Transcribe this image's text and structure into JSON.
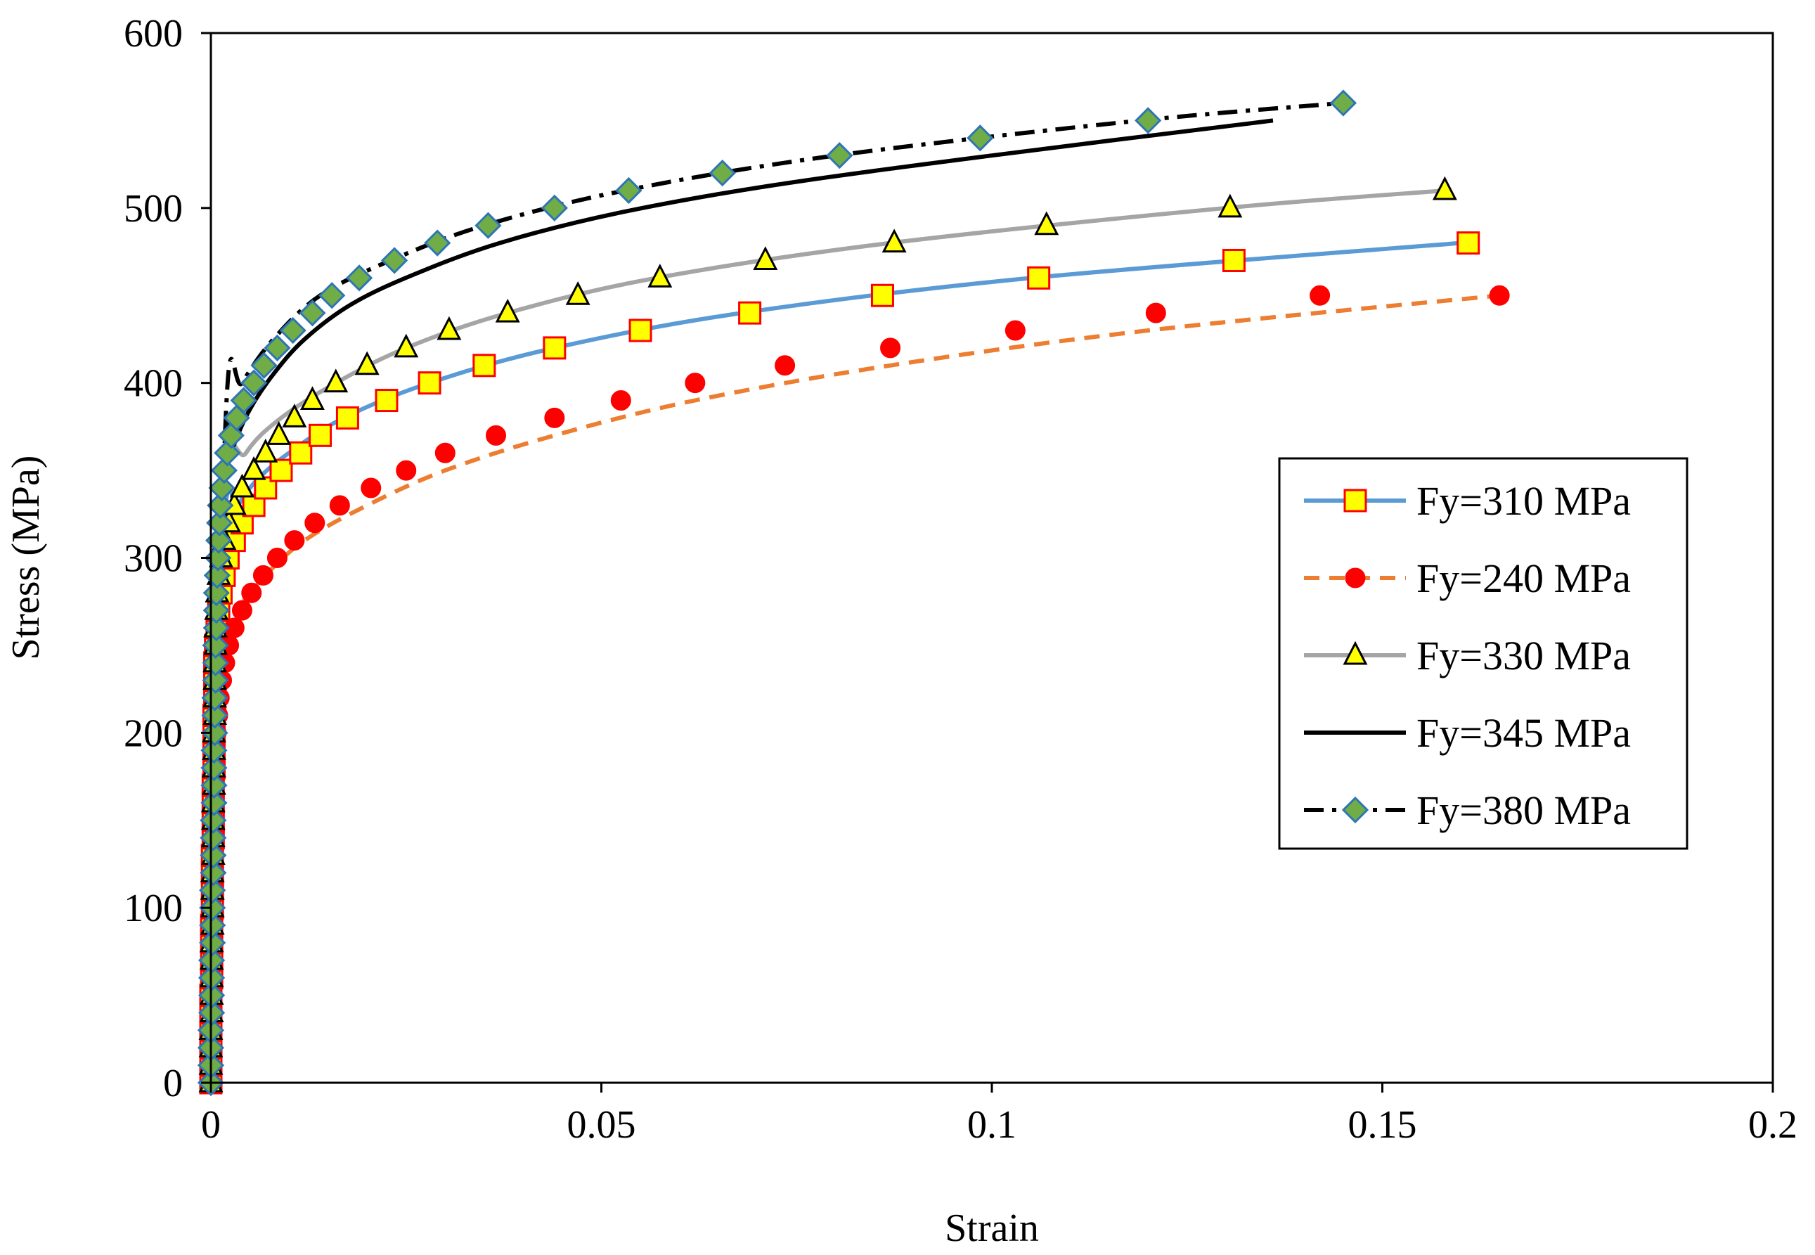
{
  "chart_data": {
    "type": "line",
    "title": "",
    "xlabel": "Strain",
    "ylabel": "Stress (MPa)",
    "xlim": [
      0,
      0.2
    ],
    "ylim": [
      0,
      600
    ],
    "xticks": [
      0,
      0.05,
      0.1,
      0.15,
      0.2
    ],
    "xtick_labels": [
      "0",
      "0.05",
      "0.1",
      "0.15",
      "0.2"
    ],
    "yticks": [
      0,
      100,
      200,
      300,
      400,
      500,
      600
    ],
    "ytick_labels": [
      "0",
      "100",
      "200",
      "300",
      "400",
      "500",
      "600"
    ],
    "grid": false,
    "legend_position": "right-center",
    "series": [
      {
        "name": "Fy=310 MPa",
        "line_color": "#5b9bd5",
        "line_style": "solid",
        "marker": "square",
        "marker_fill": "#ffff00",
        "marker_stroke": "#ff0000",
        "line_points": [
          [
            0,
            0
          ],
          [
            0.0016,
            310
          ],
          [
            0.0035,
            330
          ],
          [
            0.006,
            345
          ],
          [
            0.01,
            360
          ],
          [
            0.017,
            380
          ],
          [
            0.028,
            400
          ],
          [
            0.044,
            420
          ],
          [
            0.068,
            440
          ],
          [
            0.105,
            460
          ],
          [
            0.16,
            480
          ]
        ],
        "marker_points": [
          [
            0,
            0
          ],
          [
            0,
            10
          ],
          [
            0,
            20
          ],
          [
            0,
            30
          ],
          [
            0,
            40
          ],
          [
            0,
            50
          ],
          [
            0.0001,
            60
          ],
          [
            0.0001,
            70
          ],
          [
            0.0001,
            80
          ],
          [
            0.0001,
            90
          ],
          [
            0.0002,
            100
          ],
          [
            0.0002,
            110
          ],
          [
            0.0002,
            120
          ],
          [
            0.0002,
            130
          ],
          [
            0.0003,
            140
          ],
          [
            0.0003,
            150
          ],
          [
            0.0003,
            160
          ],
          [
            0.0003,
            170
          ],
          [
            0.0004,
            180
          ],
          [
            0.0004,
            190
          ],
          [
            0.0004,
            200
          ],
          [
            0.0004,
            210
          ],
          [
            0.0005,
            220
          ],
          [
            0.0005,
            230
          ],
          [
            0.0005,
            240
          ],
          [
            0.0006,
            250
          ],
          [
            0.0008,
            260
          ],
          [
            0.001,
            270
          ],
          [
            0.0013,
            280
          ],
          [
            0.0017,
            290
          ],
          [
            0.0022,
            300
          ],
          [
            0.003,
            310
          ],
          [
            0.004,
            320
          ],
          [
            0.0055,
            330
          ],
          [
            0.007,
            340
          ],
          [
            0.009,
            350
          ],
          [
            0.0115,
            360
          ],
          [
            0.014,
            370
          ],
          [
            0.0175,
            380
          ],
          [
            0.0225,
            390
          ],
          [
            0.028,
            400
          ],
          [
            0.035,
            410
          ],
          [
            0.044,
            420
          ],
          [
            0.055,
            430
          ],
          [
            0.069,
            440
          ],
          [
            0.086,
            450
          ],
          [
            0.106,
            460
          ],
          [
            0.131,
            470
          ],
          [
            0.161,
            480
          ]
        ]
      },
      {
        "name": "Fy=240 MPa",
        "line_color": "#ed7d31",
        "line_style": "dashed",
        "marker": "circle",
        "marker_fill": "#ff0000",
        "marker_stroke": "#ff0000",
        "line_points": [
          [
            0,
            0
          ],
          [
            0.0012,
            240
          ],
          [
            0.0035,
            270
          ],
          [
            0.007,
            290
          ],
          [
            0.012,
            310
          ],
          [
            0.02,
            330
          ],
          [
            0.03,
            350
          ],
          [
            0.044,
            370
          ],
          [
            0.062,
            390
          ],
          [
            0.087,
            410
          ],
          [
            0.12,
            430
          ],
          [
            0.165,
            450
          ]
        ],
        "marker_points": [
          [
            0,
            0
          ],
          [
            0,
            10
          ],
          [
            0,
            20
          ],
          [
            0,
            30
          ],
          [
            0.0001,
            40
          ],
          [
            0.0001,
            50
          ],
          [
            0.0001,
            60
          ],
          [
            0.0001,
            70
          ],
          [
            0.0002,
            80
          ],
          [
            0.0002,
            90
          ],
          [
            0.0002,
            100
          ],
          [
            0.0003,
            110
          ],
          [
            0.0003,
            120
          ],
          [
            0.0003,
            130
          ],
          [
            0.0004,
            140
          ],
          [
            0.0004,
            150
          ],
          [
            0.0004,
            160
          ],
          [
            0.0005,
            170
          ],
          [
            0.0005,
            180
          ],
          [
            0.0006,
            190
          ],
          [
            0.0007,
            200
          ],
          [
            0.0009,
            210
          ],
          [
            0.0011,
            220
          ],
          [
            0.0014,
            230
          ],
          [
            0.0018,
            240
          ],
          [
            0.0023,
            250
          ],
          [
            0.003,
            260
          ],
          [
            0.004,
            270
          ],
          [
            0.0052,
            280
          ],
          [
            0.0067,
            290
          ],
          [
            0.0085,
            300
          ],
          [
            0.0107,
            310
          ],
          [
            0.0133,
            320
          ],
          [
            0.0165,
            330
          ],
          [
            0.0205,
            340
          ],
          [
            0.025,
            350
          ],
          [
            0.03,
            360
          ],
          [
            0.0365,
            370
          ],
          [
            0.044,
            380
          ],
          [
            0.0525,
            390
          ],
          [
            0.062,
            400
          ],
          [
            0.0735,
            410
          ],
          [
            0.087,
            420
          ],
          [
            0.103,
            430
          ],
          [
            0.121,
            440
          ],
          [
            0.142,
            450
          ],
          [
            0.165,
            450
          ]
        ]
      },
      {
        "name": "Fy=330 MPa",
        "line_color": "#a5a5a5",
        "line_style": "solid",
        "marker": "triangle",
        "marker_fill": "#ffff00",
        "marker_stroke": "#000000",
        "line_points": [
          [
            0,
            0
          ],
          [
            0.0017,
            330
          ],
          [
            0.0045,
            360
          ],
          [
            0.009,
            380
          ],
          [
            0.016,
            400
          ],
          [
            0.025,
            420
          ],
          [
            0.038,
            440
          ],
          [
            0.057,
            460
          ],
          [
            0.087,
            480
          ],
          [
            0.13,
            500
          ],
          [
            0.158,
            510
          ]
        ],
        "marker_points": [
          [
            0,
            0
          ],
          [
            0,
            10
          ],
          [
            0,
            20
          ],
          [
            0,
            30
          ],
          [
            0.0001,
            40
          ],
          [
            0.0001,
            50
          ],
          [
            0.0001,
            60
          ],
          [
            0.0001,
            70
          ],
          [
            0.0001,
            80
          ],
          [
            0.0002,
            90
          ],
          [
            0.0002,
            100
          ],
          [
            0.0002,
            110
          ],
          [
            0.0002,
            120
          ],
          [
            0.0003,
            130
          ],
          [
            0.0003,
            140
          ],
          [
            0.0003,
            150
          ],
          [
            0.0003,
            160
          ],
          [
            0.0004,
            170
          ],
          [
            0.0004,
            180
          ],
          [
            0.0004,
            190
          ],
          [
            0.0004,
            200
          ],
          [
            0.0005,
            210
          ],
          [
            0.0005,
            220
          ],
          [
            0.0005,
            230
          ],
          [
            0.0005,
            240
          ],
          [
            0.0006,
            250
          ],
          [
            0.0006,
            260
          ],
          [
            0.0007,
            270
          ],
          [
            0.0008,
            280
          ],
          [
            0.001,
            290
          ],
          [
            0.0013,
            300
          ],
          [
            0.0017,
            310
          ],
          [
            0.0023,
            320
          ],
          [
            0.003,
            330
          ],
          [
            0.004,
            340
          ],
          [
            0.0055,
            350
          ],
          [
            0.007,
            360
          ],
          [
            0.0087,
            370
          ],
          [
            0.0107,
            380
          ],
          [
            0.013,
            390
          ],
          [
            0.016,
            400
          ],
          [
            0.02,
            410
          ],
          [
            0.025,
            420
          ],
          [
            0.0305,
            430
          ],
          [
            0.038,
            440
          ],
          [
            0.047,
            450
          ],
          [
            0.0575,
            460
          ],
          [
            0.071,
            470
          ],
          [
            0.0875,
            480
          ],
          [
            0.107,
            490
          ],
          [
            0.1305,
            500
          ],
          [
            0.158,
            510
          ]
        ]
      },
      {
        "name": "Fy=345 MPa",
        "line_color": "#000000",
        "line_style": "solid",
        "marker": "none",
        "line_points": [
          [
            0,
            0
          ],
          [
            0.0017,
            345
          ],
          [
            0.003,
            365
          ],
          [
            0.005,
            385
          ],
          [
            0.008,
            405
          ],
          [
            0.012,
            425
          ],
          [
            0.018,
            445
          ],
          [
            0.026,
            462
          ],
          [
            0.037,
            480
          ],
          [
            0.052,
            497
          ],
          [
            0.072,
            513
          ],
          [
            0.1,
            530
          ],
          [
            0.136,
            550
          ]
        ],
        "marker_points": []
      },
      {
        "name": "Fy=380 MPa",
        "line_color": "#000000",
        "line_style": "dashdot",
        "marker": "diamond",
        "marker_fill": "#70ad47",
        "marker_stroke": "#2e75b6",
        "line_points": [
          [
            0,
            0
          ],
          [
            0.0019,
            380
          ],
          [
            0.004,
            400
          ],
          [
            0.008,
            425
          ],
          [
            0.014,
            450
          ],
          [
            0.023,
            470
          ],
          [
            0.035,
            490
          ],
          [
            0.053,
            510
          ],
          [
            0.08,
            530
          ],
          [
            0.119,
            550
          ],
          [
            0.145,
            560
          ]
        ],
        "marker_points": [
          [
            0,
            0
          ],
          [
            0,
            10
          ],
          [
            0,
            20
          ],
          [
            0,
            30
          ],
          [
            0.0001,
            40
          ],
          [
            0.0001,
            50
          ],
          [
            0.0001,
            60
          ],
          [
            0.0001,
            70
          ],
          [
            0.0002,
            80
          ],
          [
            0.0002,
            90
          ],
          [
            0.0002,
            100
          ],
          [
            0.0002,
            110
          ],
          [
            0.0003,
            120
          ],
          [
            0.0003,
            130
          ],
          [
            0.0003,
            140
          ],
          [
            0.0003,
            150
          ],
          [
            0.0004,
            160
          ],
          [
            0.0004,
            170
          ],
          [
            0.0004,
            180
          ],
          [
            0.0004,
            190
          ],
          [
            0.0005,
            200
          ],
          [
            0.0005,
            210
          ],
          [
            0.0005,
            220
          ],
          [
            0.0006,
            230
          ],
          [
            0.0006,
            240
          ],
          [
            0.0006,
            250
          ],
          [
            0.0007,
            260
          ],
          [
            0.0007,
            270
          ],
          [
            0.0007,
            280
          ],
          [
            0.0008,
            290
          ],
          [
            0.0009,
            300
          ],
          [
            0.001,
            310
          ],
          [
            0.0011,
            320
          ],
          [
            0.0012,
            330
          ],
          [
            0.0014,
            340
          ],
          [
            0.0017,
            350
          ],
          [
            0.0021,
            360
          ],
          [
            0.0026,
            370
          ],
          [
            0.0033,
            380
          ],
          [
            0.0042,
            390
          ],
          [
            0.0055,
            400
          ],
          [
            0.0068,
            410
          ],
          [
            0.0085,
            420
          ],
          [
            0.0105,
            430
          ],
          [
            0.013,
            440
          ],
          [
            0.0155,
            450
          ],
          [
            0.019,
            460
          ],
          [
            0.0235,
            470
          ],
          [
            0.029,
            480
          ],
          [
            0.0355,
            490
          ],
          [
            0.044,
            500
          ],
          [
            0.0535,
            510
          ],
          [
            0.0655,
            520
          ],
          [
            0.0805,
            530
          ],
          [
            0.0985,
            540
          ],
          [
            0.12,
            550
          ],
          [
            0.145,
            560
          ]
        ]
      }
    ]
  }
}
